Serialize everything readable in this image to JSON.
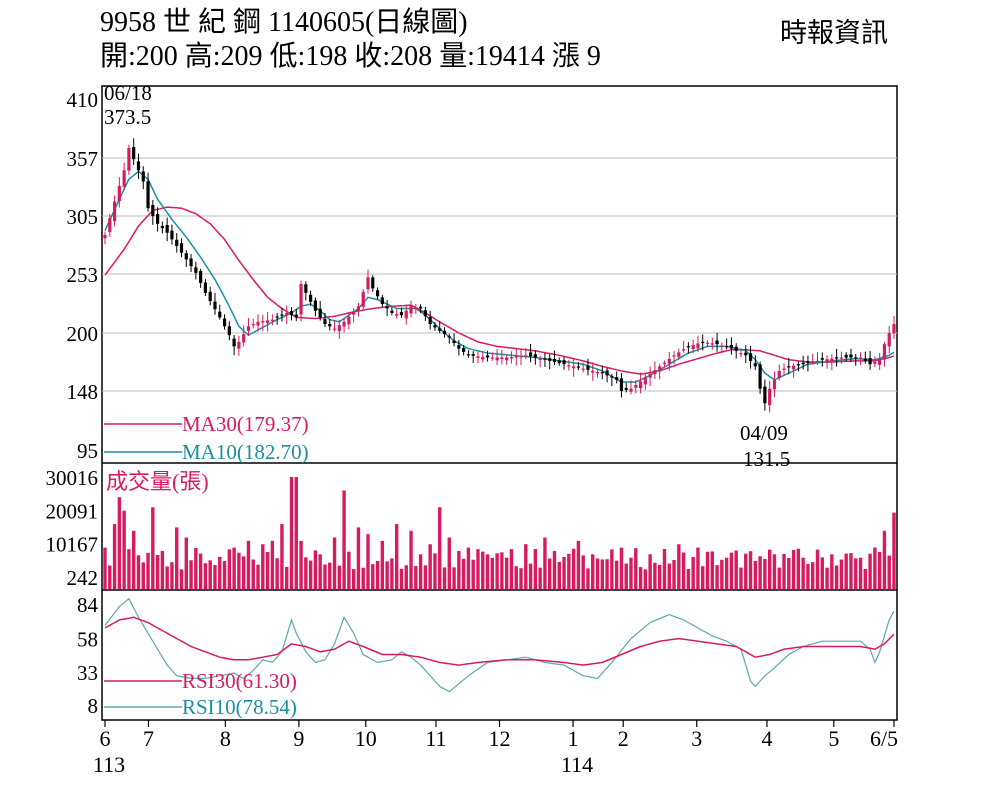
{
  "header": {
    "title": "9958 世 紀 鋼 1140605(日線圖)",
    "ohlc": "開:200 高:209 低:198 收:208 量:19414 漲 9",
    "brand": "時報資訊"
  },
  "colors": {
    "up": "#d81b60",
    "down": "#000000",
    "ma30": "#d81b60",
    "ma10": "#1a8fa0",
    "rsi30": "#d81b60",
    "rsi10": "#5ba7b5",
    "volume": "#d81b60",
    "grid": "#bdbdbd"
  },
  "chart_data": [
    {
      "id": "price",
      "type": "candlestick",
      "y_ticks": [
        "410",
        "357",
        "305",
        "253",
        "200",
        "148",
        "95"
      ],
      "ylim": [
        95,
        410
      ],
      "x_month_labels": [
        "6",
        "7",
        "8",
        "9",
        "10",
        "11",
        "12",
        "1",
        "2",
        "3",
        "4",
        "5",
        "6/5"
      ],
      "x_year_labels": [
        {
          "under": "6",
          "text": "113"
        },
        {
          "under": "1",
          "text": "114"
        }
      ],
      "annotations": [
        {
          "text_date": "06/18",
          "text_value": "373.5",
          "kind": "high"
        },
        {
          "text_date": "04/09",
          "text_value": "131.5",
          "kind": "low"
        }
      ],
      "series": [
        {
          "name": "MA30",
          "label": "MA30(179.37)",
          "last": 179.37
        },
        {
          "name": "MA10",
          "label": "MA10(182.70)",
          "last": 182.7
        }
      ],
      "close_path": [
        [
          0,
          288
        ],
        [
          2,
          318
        ],
        [
          4,
          346
        ],
        [
          5,
          366
        ],
        [
          6,
          356
        ],
        [
          8,
          336
        ],
        [
          9,
          312
        ],
        [
          11,
          298
        ],
        [
          13,
          290
        ],
        [
          15,
          278
        ],
        [
          17,
          266
        ],
        [
          19,
          254
        ],
        [
          21,
          236
        ],
        [
          24,
          214
        ],
        [
          26,
          198
        ],
        [
          27,
          188
        ],
        [
          28,
          192
        ],
        [
          30,
          206
        ],
        [
          32,
          210
        ],
        [
          35,
          212
        ],
        [
          38,
          218
        ],
        [
          40,
          214
        ],
        [
          41,
          244
        ],
        [
          42,
          236
        ],
        [
          44,
          220
        ],
        [
          46,
          208
        ],
        [
          48,
          204
        ],
        [
          50,
          210
        ],
        [
          53,
          224
        ],
        [
          55,
          250
        ],
        [
          56,
          240
        ],
        [
          58,
          226
        ],
        [
          60,
          218
        ],
        [
          62,
          216
        ],
        [
          64,
          224
        ],
        [
          66,
          222
        ],
        [
          68,
          208
        ],
        [
          70,
          202
        ],
        [
          72,
          196
        ],
        [
          74,
          186
        ],
        [
          76,
          180
        ],
        [
          80,
          178
        ],
        [
          84,
          178
        ],
        [
          88,
          180
        ],
        [
          92,
          176
        ],
        [
          96,
          172
        ],
        [
          100,
          168
        ],
        [
          104,
          164
        ],
        [
          107,
          158
        ],
        [
          108,
          148
        ],
        [
          110,
          150
        ],
        [
          113,
          160
        ],
        [
          116,
          170
        ],
        [
          119,
          180
        ],
        [
          122,
          188
        ],
        [
          125,
          192
        ],
        [
          128,
          190
        ],
        [
          131,
          186
        ],
        [
          134,
          180
        ],
        [
          136,
          170
        ],
        [
          137,
          150
        ],
        [
          138,
          137
        ],
        [
          139,
          150
        ],
        [
          141,
          166
        ],
        [
          143,
          170
        ],
        [
          146,
          172
        ],
        [
          150,
          176
        ],
        [
          154,
          178
        ],
        [
          158,
          178
        ],
        [
          160,
          172
        ],
        [
          162,
          176
        ],
        [
          163,
          190
        ],
        [
          164,
          200
        ],
        [
          165,
          208
        ]
      ],
      "ma10_path": [
        [
          0,
          292
        ],
        [
          3,
          320
        ],
        [
          5,
          338
        ],
        [
          7,
          345
        ],
        [
          9,
          338
        ],
        [
          11,
          320
        ],
        [
          14,
          302
        ],
        [
          17,
          286
        ],
        [
          20,
          268
        ],
        [
          23,
          248
        ],
        [
          26,
          224
        ],
        [
          28,
          206
        ],
        [
          30,
          198
        ],
        [
          33,
          205
        ],
        [
          36,
          212
        ],
        [
          39,
          218
        ],
        [
          41,
          224
        ],
        [
          43,
          226
        ],
        [
          45,
          220
        ],
        [
          47,
          212
        ],
        [
          49,
          210
        ],
        [
          51,
          216
        ],
        [
          53,
          222
        ],
        [
          55,
          232
        ],
        [
          57,
          230
        ],
        [
          59,
          226
        ],
        [
          61,
          222
        ],
        [
          63,
          222
        ],
        [
          65,
          222
        ],
        [
          67,
          216
        ],
        [
          69,
          208
        ],
        [
          71,
          200
        ],
        [
          73,
          193
        ],
        [
          76,
          186
        ],
        [
          80,
          182
        ],
        [
          85,
          180
        ],
        [
          90,
          178
        ],
        [
          95,
          175
        ],
        [
          100,
          172
        ],
        [
          104,
          166
        ],
        [
          108,
          156
        ],
        [
          111,
          156
        ],
        [
          114,
          162
        ],
        [
          118,
          172
        ],
        [
          122,
          182
        ],
        [
          126,
          188
        ],
        [
          130,
          188
        ],
        [
          134,
          184
        ],
        [
          136,
          176
        ],
        [
          138,
          164
        ],
        [
          140,
          158
        ],
        [
          143,
          164
        ],
        [
          147,
          172
        ],
        [
          152,
          175
        ],
        [
          157,
          177
        ],
        [
          161,
          176
        ],
        [
          164,
          180
        ],
        [
          165,
          182.7
        ]
      ],
      "ma30_path": [
        [
          0,
          252
        ],
        [
          4,
          275
        ],
        [
          7,
          296
        ],
        [
          10,
          310
        ],
        [
          13,
          313
        ],
        [
          16,
          312
        ],
        [
          19,
          307
        ],
        [
          22,
          298
        ],
        [
          25,
          284
        ],
        [
          28,
          265
        ],
        [
          31,
          248
        ],
        [
          34,
          232
        ],
        [
          37,
          222
        ],
        [
          40,
          214
        ],
        [
          44,
          213
        ],
        [
          48,
          215
        ],
        [
          52,
          219
        ],
        [
          56,
          222
        ],
        [
          60,
          224
        ],
        [
          64,
          225
        ],
        [
          67,
          218
        ],
        [
          70,
          210
        ],
        [
          74,
          200
        ],
        [
          78,
          192
        ],
        [
          82,
          188
        ],
        [
          86,
          186
        ],
        [
          90,
          184
        ],
        [
          95,
          180
        ],
        [
          100,
          175
        ],
        [
          104,
          170
        ],
        [
          108,
          166
        ],
        [
          112,
          163
        ],
        [
          116,
          166
        ],
        [
          120,
          172
        ],
        [
          124,
          177
        ],
        [
          128,
          182
        ],
        [
          131,
          185
        ],
        [
          134,
          185
        ],
        [
          137,
          184
        ],
        [
          140,
          180
        ],
        [
          143,
          176
        ],
        [
          147,
          174
        ],
        [
          152,
          174
        ],
        [
          157,
          175
        ],
        [
          161,
          175
        ],
        [
          164,
          178
        ],
        [
          165,
          179.37
        ]
      ]
    },
    {
      "id": "volume",
      "type": "bar",
      "title": "成交量(張)",
      "y_ticks": [
        "30016",
        "20091",
        "10167",
        "242"
      ],
      "ylim": [
        242,
        30016
      ],
      "last": 19414,
      "spikes": [
        [
          0,
          9000
        ],
        [
          2,
          16000
        ],
        [
          3,
          24000
        ],
        [
          4,
          20000
        ],
        [
          6,
          14000
        ],
        [
          10,
          21000
        ],
        [
          12,
          8000
        ],
        [
          15,
          15000
        ],
        [
          17,
          12000
        ],
        [
          25,
          5000
        ],
        [
          27,
          9000
        ],
        [
          30,
          11000
        ],
        [
          33,
          10000
        ],
        [
          35,
          11000
        ],
        [
          37,
          16000
        ],
        [
          39,
          12000
        ],
        [
          39.5,
          30016
        ],
        [
          41,
          11000
        ],
        [
          45,
          7000
        ],
        [
          48,
          12000
        ],
        [
          50,
          26000
        ],
        [
          53,
          15000
        ],
        [
          55,
          13000
        ],
        [
          58,
          11000
        ],
        [
          61,
          16000
        ],
        [
          64,
          14000
        ],
        [
          68,
          10000
        ],
        [
          70,
          21000
        ],
        [
          72,
          12000
        ],
        [
          74,
          8000
        ],
        [
          76,
          9000
        ],
        [
          80,
          7000
        ],
        [
          84,
          6000
        ],
        [
          88,
          10000
        ],
        [
          92,
          12000
        ],
        [
          94,
          8000
        ],
        [
          99,
          11000
        ],
        [
          102,
          7000
        ],
        [
          110,
          6000
        ],
        [
          114,
          7000
        ],
        [
          120,
          10000
        ],
        [
          124,
          9000
        ],
        [
          130,
          6000
        ],
        [
          136,
          5000
        ],
        [
          140,
          7000
        ],
        [
          146,
          6000
        ],
        [
          152,
          7000
        ],
        [
          158,
          6000
        ],
        [
          161,
          9000
        ],
        [
          163,
          14000
        ],
        [
          165,
          19414
        ]
      ]
    },
    {
      "id": "rsi",
      "type": "line",
      "y_ticks": [
        "84",
        "58",
        "33",
        "8"
      ],
      "ylim": [
        8,
        84
      ],
      "series": [
        {
          "name": "RSI30",
          "label": "RSI30(61.30)",
          "last": 61.3
        },
        {
          "name": "RSI10",
          "label": "RSI10(78.54)",
          "last": 78.54
        }
      ],
      "rsi10_path": [
        [
          0,
          68
        ],
        [
          3,
          82
        ],
        [
          5,
          88
        ],
        [
          7,
          74
        ],
        [
          9,
          62
        ],
        [
          11,
          50
        ],
        [
          13,
          38
        ],
        [
          15,
          30
        ],
        [
          18,
          28
        ],
        [
          21,
          28
        ],
        [
          24,
          30
        ],
        [
          27,
          32
        ],
        [
          29,
          28
        ],
        [
          31,
          34
        ],
        [
          33,
          42
        ],
        [
          35,
          40
        ],
        [
          37,
          48
        ],
        [
          39,
          72
        ],
        [
          40,
          62
        ],
        [
          42,
          48
        ],
        [
          44,
          40
        ],
        [
          46,
          42
        ],
        [
          48,
          54
        ],
        [
          50,
          74
        ],
        [
          52,
          62
        ],
        [
          54,
          46
        ],
        [
          57,
          40
        ],
        [
          60,
          42
        ],
        [
          62,
          48
        ],
        [
          64,
          44
        ],
        [
          66,
          38
        ],
        [
          68,
          30
        ],
        [
          70,
          22
        ],
        [
          72,
          18
        ],
        [
          74,
          24
        ],
        [
          76,
          30
        ],
        [
          80,
          40
        ],
        [
          84,
          42
        ],
        [
          88,
          44
        ],
        [
          92,
          40
        ],
        [
          96,
          38
        ],
        [
          100,
          30
        ],
        [
          103,
          28
        ],
        [
          106,
          40
        ],
        [
          110,
          58
        ],
        [
          114,
          70
        ],
        [
          118,
          76
        ],
        [
          121,
          72
        ],
        [
          124,
          66
        ],
        [
          127,
          60
        ],
        [
          130,
          56
        ],
        [
          133,
          50
        ],
        [
          134,
          38
        ],
        [
          135,
          26
        ],
        [
          136,
          22
        ],
        [
          138,
          30
        ],
        [
          140,
          36
        ],
        [
          143,
          46
        ],
        [
          146,
          52
        ],
        [
          150,
          56
        ],
        [
          154,
          56
        ],
        [
          158,
          56
        ],
        [
          160,
          50
        ],
        [
          161,
          40
        ],
        [
          162,
          48
        ],
        [
          163,
          60
        ],
        [
          164,
          72
        ],
        [
          165,
          78.54
        ]
      ],
      "rsi30_path": [
        [
          0,
          66
        ],
        [
          3,
          72
        ],
        [
          6,
          74
        ],
        [
          9,
          70
        ],
        [
          12,
          64
        ],
        [
          15,
          58
        ],
        [
          18,
          52
        ],
        [
          21,
          48
        ],
        [
          24,
          44
        ],
        [
          27,
          42
        ],
        [
          30,
          42
        ],
        [
          33,
          44
        ],
        [
          36,
          46
        ],
        [
          39,
          54
        ],
        [
          42,
          52
        ],
        [
          45,
          48
        ],
        [
          48,
          50
        ],
        [
          51,
          56
        ],
        [
          54,
          52
        ],
        [
          58,
          46
        ],
        [
          62,
          46
        ],
        [
          66,
          44
        ],
        [
          70,
          40
        ],
        [
          74,
          38
        ],
        [
          78,
          40
        ],
        [
          84,
          42
        ],
        [
          90,
          42
        ],
        [
          96,
          40
        ],
        [
          100,
          38
        ],
        [
          104,
          40
        ],
        [
          108,
          46
        ],
        [
          112,
          52
        ],
        [
          116,
          56
        ],
        [
          120,
          58
        ],
        [
          124,
          56
        ],
        [
          128,
          54
        ],
        [
          132,
          52
        ],
        [
          134,
          48
        ],
        [
          136,
          44
        ],
        [
          139,
          46
        ],
        [
          142,
          50
        ],
        [
          146,
          52
        ],
        [
          150,
          52
        ],
        [
          154,
          52
        ],
        [
          158,
          52
        ],
        [
          161,
          50
        ],
        [
          163,
          54
        ],
        [
          165,
          61.3
        ]
      ]
    }
  ]
}
